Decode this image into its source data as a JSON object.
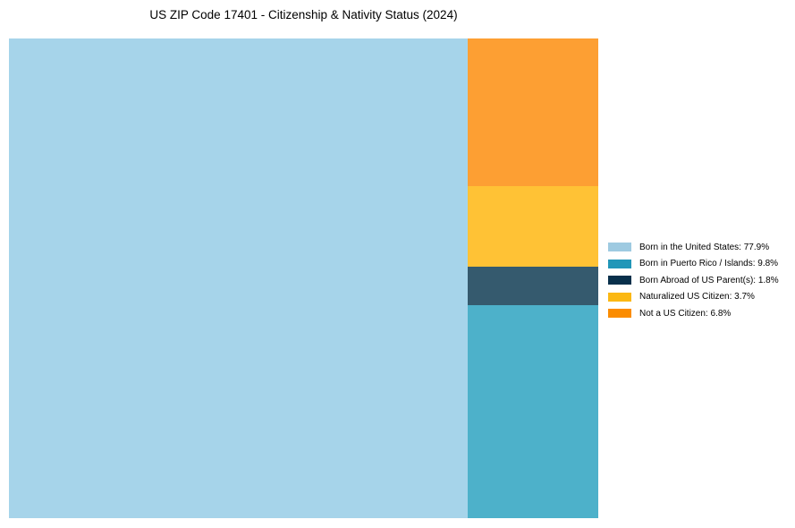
{
  "chart_data": {
    "type": "treemap",
    "title": "US ZIP Code 17401 - Citizenship & Nativity Status (2024)",
    "categories": [
      "Born in the United States",
      "Born in Puerto Rico / Islands",
      "Born Abroad of US Parent(s)",
      "Naturalized US Citizen",
      "Not a US Citizen"
    ],
    "values": [
      77.9,
      9.8,
      1.8,
      3.7,
      6.8
    ],
    "unit": "%",
    "legend_position": "right",
    "colors": [
      "#9ecae1",
      "#2196b8",
      "#08304b",
      "#fbb813",
      "#fb8c00"
    ],
    "tile_colors": [
      "#a6d4ea",
      "#4db1ca",
      "#355a6e",
      "#ffc235",
      "#fd9f33"
    ],
    "legend": [
      {
        "label": "Born in the United States: 77.9%",
        "color": "#9ecae1"
      },
      {
        "label": "Born in Puerto Rico / Islands: 9.8%",
        "color": "#2196b8"
      },
      {
        "label": "Born Abroad of US Parent(s): 1.8%",
        "color": "#08304b"
      },
      {
        "label": "Naturalized US Citizen: 3.7%",
        "color": "#fbb813"
      },
      {
        "label": "Not a US Citizen: 6.8%",
        "color": "#fb8c00"
      }
    ]
  }
}
